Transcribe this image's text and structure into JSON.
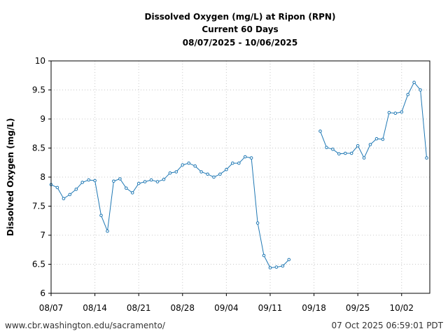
{
  "chart_data": {
    "type": "line",
    "title": "Dissolved Oxygen (mg/L) at Ripon (RPN)",
    "subtitle": "Current 60 Days",
    "date_range": "08/07/2025 - 10/06/2025",
    "xlabel": "",
    "ylabel": "Dissolved Oxygen (mg/L)",
    "ylim": [
      6,
      10
    ],
    "yticks": [
      "6",
      "6.5",
      "7",
      "7.5",
      "8",
      "8.5",
      "9",
      "9.5",
      "10"
    ],
    "xlim": [
      "08/07",
      "10/06"
    ],
    "xticks": [
      "08/07",
      "08/14",
      "08/21",
      "08/28",
      "09/04",
      "09/11",
      "09/18",
      "09/25",
      "10/02"
    ],
    "grid": true,
    "line_color": "#1f78b4",
    "series": [
      {
        "segments": [
          [
            [
              "08/07",
              7.87
            ],
            [
              "08/08",
              7.82
            ],
            [
              "08/09",
              7.63
            ],
            [
              "08/10",
              7.7
            ],
            [
              "08/11",
              7.79
            ],
            [
              "08/12",
              7.91
            ],
            [
              "08/13",
              7.95
            ],
            [
              "08/14",
              7.94
            ],
            [
              "08/15",
              7.34
            ],
            [
              "08/16",
              7.07
            ],
            [
              "08/17",
              7.93
            ],
            [
              "08/18",
              7.97
            ],
            [
              "08/19",
              7.81
            ],
            [
              "08/20",
              7.73
            ],
            [
              "08/21",
              7.89
            ],
            [
              "08/22",
              7.92
            ],
            [
              "08/23",
              7.95
            ],
            [
              "08/24",
              7.92
            ],
            [
              "08/25",
              7.96
            ],
            [
              "08/26",
              8.07
            ],
            [
              "08/27",
              8.09
            ],
            [
              "08/28",
              8.21
            ],
            [
              "08/29",
              8.24
            ],
            [
              "08/30",
              8.19
            ],
            [
              "08/31",
              8.09
            ],
            [
              "09/01",
              8.05
            ],
            [
              "09/02",
              8.0
            ],
            [
              "09/03",
              8.05
            ],
            [
              "09/04",
              8.13
            ],
            [
              "09/05",
              8.24
            ],
            [
              "09/06",
              8.24
            ],
            [
              "09/07",
              8.35
            ],
            [
              "09/08",
              8.33
            ],
            [
              "09/09",
              7.21
            ],
            [
              "09/10",
              6.65
            ],
            [
              "09/11",
              6.44
            ],
            [
              "09/12",
              6.45
            ],
            [
              "09/13",
              6.47
            ],
            [
              "09/14",
              6.58
            ]
          ],
          [
            [
              "09/19",
              8.79
            ],
            [
              "09/20",
              8.51
            ],
            [
              "09/21",
              8.48
            ],
            [
              "09/22",
              8.4
            ],
            [
              "09/23",
              8.41
            ],
            [
              "09/24",
              8.41
            ],
            [
              "09/25",
              8.54
            ],
            [
              "09/26",
              8.33
            ],
            [
              "09/27",
              8.56
            ],
            [
              "09/28",
              8.66
            ],
            [
              "09/29",
              8.65
            ],
            [
              "09/30",
              9.11
            ],
            [
              "10/01",
              9.1
            ],
            [
              "10/02",
              9.12
            ],
            [
              "10/03",
              9.42
            ],
            [
              "10/04",
              9.63
            ],
            [
              "10/05",
              9.5
            ],
            [
              "10/06",
              8.33
            ]
          ]
        ]
      }
    ]
  },
  "footer": {
    "source": "www.cbr.washington.edu/sacramento/",
    "timestamp": "07 Oct 2025 06:59:01 PDT"
  }
}
